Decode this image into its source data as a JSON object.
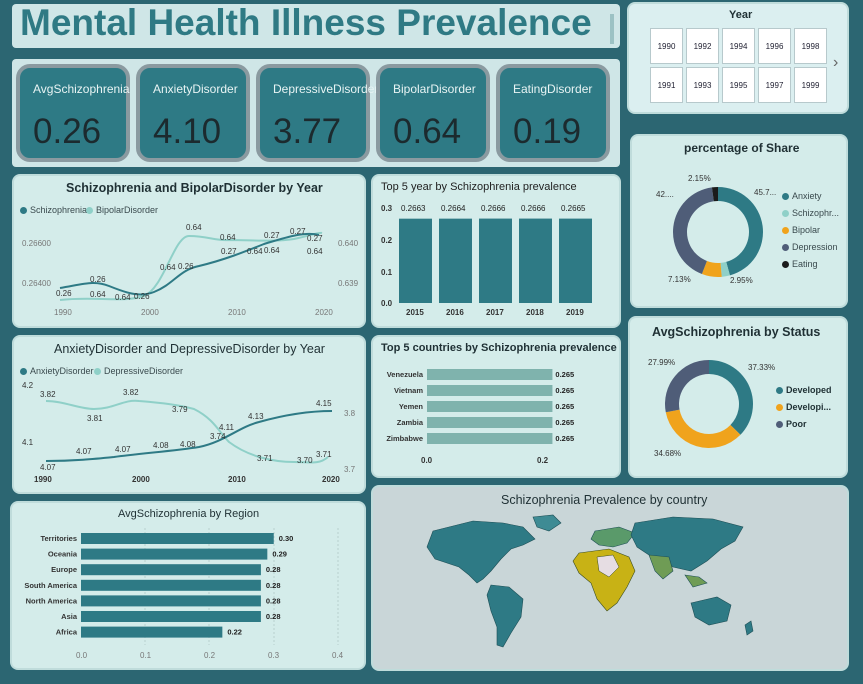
{
  "title": "Mental Health Illness Prevalence",
  "kpis": [
    {
      "label": "AvgSchizophrenia",
      "value": "0.26"
    },
    {
      "label": "AnxietyDisorder",
      "value": "4.10"
    },
    {
      "label": "DepressiveDisorder",
      "value": "3.77"
    },
    {
      "label": "BipolarDisorder",
      "value": "0.64"
    },
    {
      "label": "EatingDisorder",
      "value": "0.19"
    }
  ],
  "year_slicer": {
    "title": "Year",
    "row1": [
      "1990",
      "1992",
      "1994",
      "1996",
      "1998"
    ],
    "row2": [
      "1991",
      "1993",
      "1995",
      "1997",
      "1999"
    ],
    "next": "›"
  },
  "schizo_bipolar": {
    "title": "Schizophrenia and BipolarDisorder by Year",
    "legend": [
      "Schizophrenia",
      "BipolarDisorder"
    ],
    "left_ticks": [
      "0.26600",
      "0.26400"
    ],
    "right_ticks": [
      "0.640",
      "0.639"
    ],
    "x_ticks": [
      "1990",
      "2000",
      "2010",
      "2020"
    ],
    "data_labels": [
      "0.26",
      "0.26",
      "0.64",
      "0.64",
      "0.26",
      "0.64",
      "0.64",
      "0.26",
      "0.64",
      "0.27",
      "0.64",
      "0.27",
      "0.27",
      "0.64",
      "0.27",
      "0.64"
    ]
  },
  "anxiety_depressive": {
    "title": "AnxietyDisorder and DepressiveDisorder by Year",
    "legend": [
      "AnxietyDisorder",
      "DepressiveDisorder"
    ],
    "left_ticks": [
      "4.2",
      "4.1"
    ],
    "right_ticks": [
      "3.8",
      "3.7"
    ],
    "x_ticks": [
      "1990",
      "2000",
      "2010",
      "2020"
    ],
    "data_labels": [
      "3.82",
      "3.81",
      "3.82",
      "3.79",
      "3.74",
      "4.11",
      "4.13",
      "4.15",
      "3.71",
      "3.70",
      "3.71",
      "4.07",
      "4.07",
      "4.07",
      "4.08",
      "4.08"
    ]
  },
  "colors": {
    "teal": "#2e7a85",
    "light": "#8fd0c8",
    "orange": "#f0a31c",
    "slate": "#4f5d78",
    "black": "#1b1b1b",
    "bar_mid": "#7fb3ad"
  },
  "chart_data": [
    {
      "type": "bar",
      "title": "Top 5 year by Schizophrenia prevalence",
      "categories": [
        "2015",
        "2016",
        "2017",
        "2018",
        "2019"
      ],
      "values": [
        0.2663,
        0.2664,
        0.2666,
        0.2666,
        0.2665
      ],
      "labels": [
        "0.2663",
        "0.2664",
        "0.2666",
        "0.2666",
        "0.2665"
      ],
      "y_ticks": [
        "0.3",
        "0.2",
        "0.1",
        "0.0"
      ],
      "ylim": [
        0,
        0.3
      ]
    },
    {
      "type": "bar",
      "orientation": "horizontal",
      "title": "Top 5 countries by Schizophrenia prevalence",
      "categories": [
        "Venezuela",
        "Vietnam",
        "Yemen",
        "Zambia",
        "Zimbabwe"
      ],
      "values": [
        0.265,
        0.265,
        0.265,
        0.265,
        0.265
      ],
      "labels": [
        "0.265",
        "0.265",
        "0.265",
        "0.265",
        "0.265"
      ],
      "x_ticks": [
        "0.0",
        "0.2"
      ],
      "xlim": [
        0,
        0.3
      ]
    },
    {
      "type": "pie",
      "title": "percentage of Share",
      "categories": [
        "Anxiety",
        "Schizophr...",
        "Bipolar",
        "Depression",
        "Eating"
      ],
      "values": [
        45.7,
        2.95,
        7.13,
        42.0,
        2.15
      ],
      "labels": [
        "45.7...",
        "2.95%",
        "7.13%",
        "42....",
        "2.15%"
      ]
    },
    {
      "type": "pie",
      "title": "AvgSchizophrenia by Status",
      "categories": [
        "Developed",
        "Developi...",
        "Poor"
      ],
      "values": [
        37.33,
        34.68,
        27.99
      ],
      "labels": [
        "37.33%",
        "34.68%",
        "27.99%"
      ]
    },
    {
      "type": "bar",
      "orientation": "horizontal",
      "title": "AvgSchizophrenia by Region",
      "categories": [
        "Territories",
        "Oceania",
        "Europe",
        "South America",
        "North America",
        "Asia",
        "Africa"
      ],
      "values": [
        0.3,
        0.29,
        0.28,
        0.28,
        0.28,
        0.28,
        0.22
      ],
      "labels": [
        "0.30",
        "0.29",
        "0.28",
        "0.28",
        "0.28",
        "0.28",
        "0.22"
      ],
      "x_ticks": [
        "0.0",
        "0.1",
        "0.2",
        "0.3",
        "0.4"
      ],
      "xlim": [
        0,
        0.4
      ]
    }
  ],
  "map": {
    "title": "Schizophrenia Prevalence by country"
  }
}
